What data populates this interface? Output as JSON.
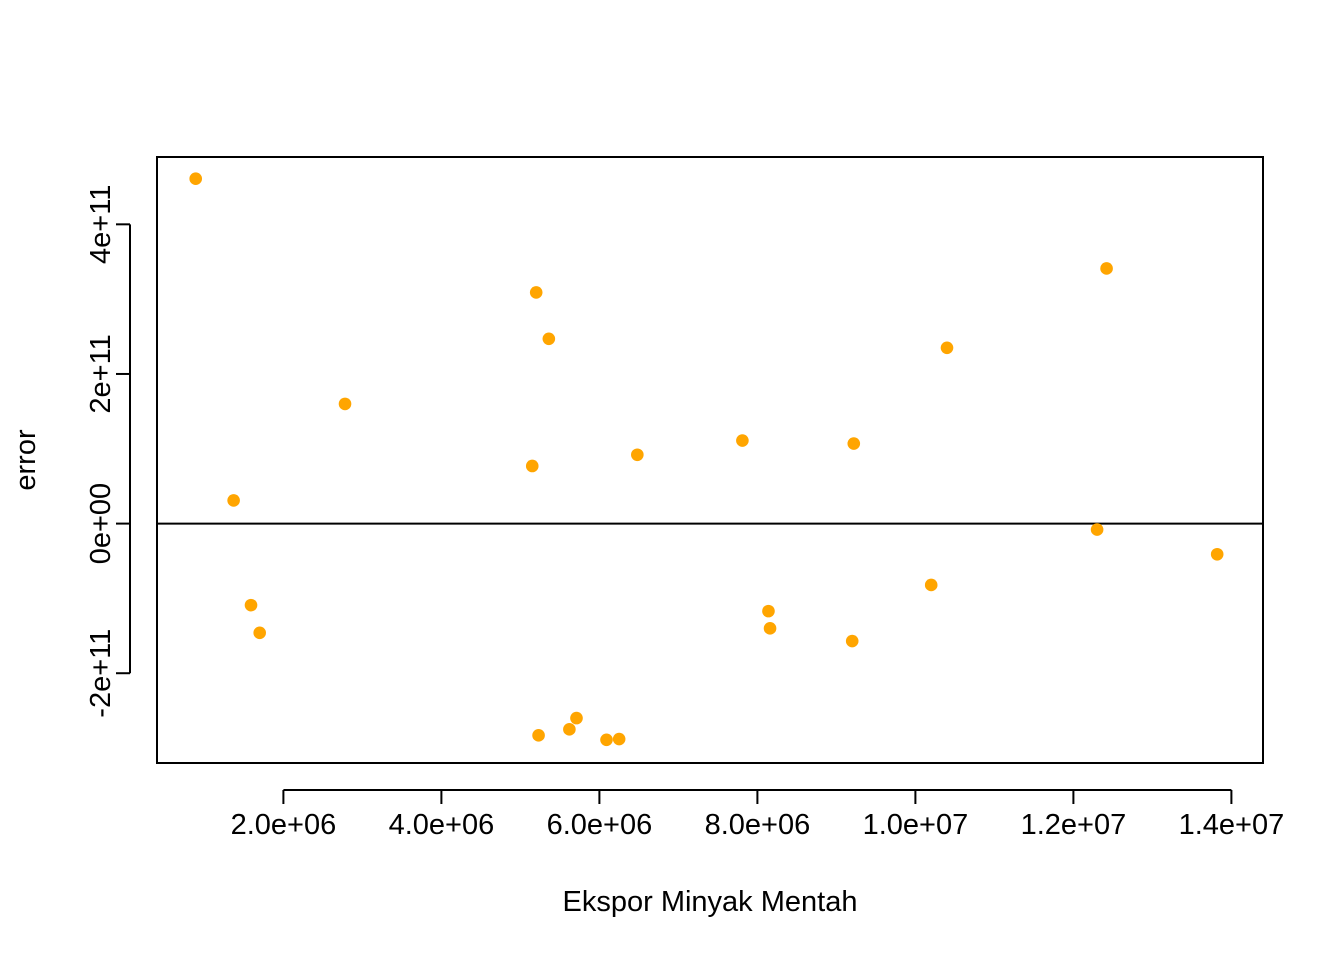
{
  "chart_data": {
    "type": "scatter",
    "title": "",
    "xlabel": "Ekspor Minyak Mentah",
    "ylabel": "error",
    "xlim": [
      400000,
      14400000
    ],
    "ylim": [
      -320000000000,
      490000000000
    ],
    "x_ticks": [
      {
        "value": 2000000,
        "label": "2.0e+06"
      },
      {
        "value": 4000000,
        "label": "4.0e+06"
      },
      {
        "value": 6000000,
        "label": "6.0e+06"
      },
      {
        "value": 8000000,
        "label": "8.0e+06"
      },
      {
        "value": 10000000,
        "label": "1.0e+07"
      },
      {
        "value": 12000000,
        "label": "1.2e+07"
      },
      {
        "value": 14000000,
        "label": "1.4e+07"
      }
    ],
    "y_ticks": [
      {
        "value": -200000000000,
        "label": "-2e+11"
      },
      {
        "value": 0,
        "label": "0e+00"
      },
      {
        "value": 200000000000,
        "label": "2e+11"
      },
      {
        "value": 400000000000,
        "label": "4e+11"
      }
    ],
    "reference_line": {
      "y": 0,
      "color": "#000000"
    },
    "point_color": "#FFA500",
    "grid": false,
    "legend": "none",
    "points": [
      {
        "x": 890000,
        "y": 461000000000
      },
      {
        "x": 1370000,
        "y": 31000000000
      },
      {
        "x": 1590000,
        "y": -109000000000
      },
      {
        "x": 1700000,
        "y": -146000000000
      },
      {
        "x": 2780000,
        "y": 160000000000
      },
      {
        "x": 5150000,
        "y": 77000000000
      },
      {
        "x": 5200000,
        "y": 309000000000
      },
      {
        "x": 5230000,
        "y": -283000000000
      },
      {
        "x": 5360000,
        "y": 247000000000
      },
      {
        "x": 5620000,
        "y": -275000000000
      },
      {
        "x": 5710000,
        "y": -260000000000
      },
      {
        "x": 6090000,
        "y": -289000000000
      },
      {
        "x": 6250000,
        "y": -288000000000
      },
      {
        "x": 6480000,
        "y": 92000000000
      },
      {
        "x": 7810000,
        "y": 111000000000
      },
      {
        "x": 8140000,
        "y": -117000000000
      },
      {
        "x": 8160000,
        "y": -140000000000
      },
      {
        "x": 9200000,
        "y": -157000000000
      },
      {
        "x": 9220000,
        "y": 107000000000
      },
      {
        "x": 10200000,
        "y": -82000000000
      },
      {
        "x": 10400000,
        "y": 235000000000
      },
      {
        "x": 12300000,
        "y": -8000000000
      },
      {
        "x": 12420000,
        "y": 341000000000
      },
      {
        "x": 13820000,
        "y": -41000000000
      }
    ]
  }
}
